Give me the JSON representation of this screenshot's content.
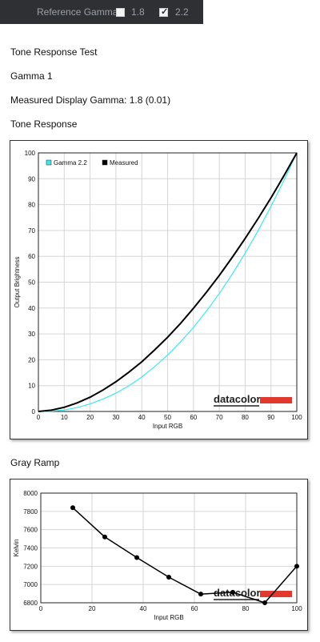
{
  "toolbar": {
    "reference_gamma_label": "Reference Gamma:",
    "option_1_value": "1.8",
    "option_1_checked": false,
    "option_2_value": "2.2",
    "option_2_checked": true
  },
  "report": {
    "title": "Tone Response Test",
    "subtitle": "Gamma 1",
    "measured_gamma": "Measured Display Gamma: 1.8 (0.01)",
    "tone_section_title": "Tone Response",
    "gray_section_title": "Gray Ramp"
  },
  "logo_text": "datacolor",
  "colors": {
    "reference_curve": "#3ee8f0",
    "measured_curve": "#000000",
    "logo_bar": "#e03a2e"
  },
  "chart_data": [
    {
      "type": "line",
      "title": "",
      "xlabel": "Input RGB",
      "ylabel": "Output Brightness",
      "xlim": [
        0,
        100
      ],
      "ylim": [
        0,
        100
      ],
      "x_ticks": [
        0,
        10,
        20,
        30,
        40,
        50,
        60,
        70,
        80,
        90,
        100
      ],
      "y_ticks": [
        0,
        10,
        20,
        30,
        40,
        50,
        60,
        70,
        80,
        90,
        100
      ],
      "grid": true,
      "legend_position": "top-left",
      "series": [
        {
          "name": "Gamma 2.2",
          "x": [
            0,
            5,
            10,
            15,
            20,
            25,
            30,
            35,
            40,
            45,
            50,
            55,
            60,
            65,
            70,
            75,
            80,
            85,
            90,
            95,
            100
          ],
          "y": [
            0,
            0.1,
            0.6,
            1.5,
            2.9,
            4.8,
            7.1,
            9.9,
            13.3,
            17.3,
            21.8,
            26.9,
            32.5,
            38.8,
            45.6,
            53.1,
            61.2,
            69.9,
            79.3,
            89.3,
            100
          ]
        },
        {
          "name": "Measured",
          "x": [
            0,
            5,
            10,
            15,
            20,
            25,
            30,
            35,
            40,
            45,
            50,
            55,
            60,
            65,
            70,
            75,
            80,
            85,
            90,
            95,
            100
          ],
          "y": [
            0,
            0.5,
            1.6,
            3.3,
            5.5,
            8.3,
            11.5,
            15.2,
            19.2,
            23.8,
            28.7,
            34.1,
            39.9,
            46.1,
            52.6,
            59.6,
            66.9,
            74.6,
            82.6,
            91.1,
            100
          ]
        }
      ]
    },
    {
      "type": "line",
      "title": "",
      "xlabel": "Input RGB",
      "ylabel": "Kelvin",
      "xlim": [
        0,
        100
      ],
      "ylim": [
        6800,
        8000
      ],
      "x_ticks": [
        0,
        20,
        40,
        60,
        80,
        100
      ],
      "y_ticks": [
        6800,
        7000,
        7200,
        7400,
        7600,
        7800,
        8000
      ],
      "grid": true,
      "series": [
        {
          "x": [
            12.5,
            25,
            37.5,
            50,
            62.5,
            75,
            87.5,
            100
          ],
          "y": [
            7840,
            7520,
            7295,
            7080,
            6895,
            6915,
            6800,
            7200
          ]
        }
      ]
    }
  ]
}
